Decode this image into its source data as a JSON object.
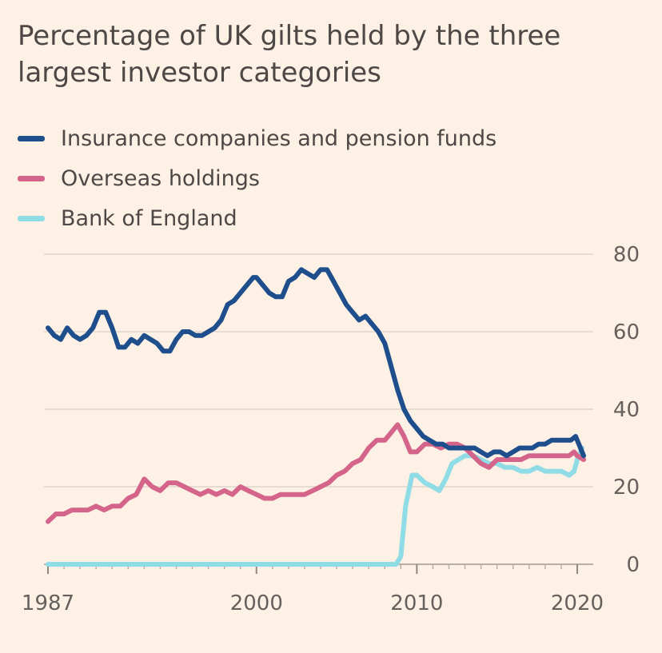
{
  "title": "Percentage of UK gilts held by the three largest investor categories",
  "colors": {
    "background": "#fdf1e6",
    "grid": "#e0d6cc",
    "insurance": "#1f4e8c",
    "overseas": "#d4648a",
    "boe": "#8fdbe6"
  },
  "chart_data": {
    "type": "line",
    "title": "Percentage of UK gilts held by the three largest investor categories",
    "xlabel": "",
    "ylabel": "",
    "xlim": [
      1987,
      2020.5
    ],
    "ylim": [
      0,
      80
    ],
    "y_ticks": [
      0,
      20,
      40,
      60,
      80
    ],
    "x_ticks": [
      1987,
      2000,
      2010,
      2020
    ],
    "grid": true,
    "legend_position": "top-left",
    "y_axis_side": "right",
    "series": [
      {
        "name": "Insurance companies and pension funds",
        "color": "#1f4e8c",
        "x": [
          1987,
          1987.4,
          1987.8,
          1988.2,
          1988.6,
          1989,
          1989.4,
          1989.8,
          1990.2,
          1990.6,
          1991,
          1991.4,
          1991.8,
          1992.2,
          1992.6,
          1993,
          1993.4,
          1993.8,
          1994.2,
          1994.6,
          1995,
          1995.4,
          1995.8,
          1996.2,
          1996.6,
          1997,
          1997.4,
          1997.8,
          1998.2,
          1998.6,
          1999,
          1999.4,
          1999.8,
          2000,
          2000.4,
          2000.8,
          2001.2,
          2001.6,
          2002,
          2002.4,
          2002.8,
          2003.2,
          2003.6,
          2004,
          2004.4,
          2004.8,
          2005.2,
          2005.6,
          2006,
          2006.4,
          2006.8,
          2007.2,
          2007.6,
          2008,
          2008.4,
          2008.8,
          2009.2,
          2009.6,
          2010,
          2010.4,
          2010.8,
          2011.2,
          2011.6,
          2012,
          2012.4,
          2012.8,
          2013.2,
          2013.6,
          2014,
          2014.4,
          2014.8,
          2015.2,
          2015.6,
          2016,
          2016.4,
          2016.8,
          2017.2,
          2017.6,
          2018,
          2018.4,
          2018.8,
          2019.2,
          2019.6,
          2019.9,
          2020.1,
          2020.4
        ],
        "values": [
          61,
          59,
          58,
          61,
          59,
          58,
          59,
          61,
          65,
          65,
          61,
          56,
          56,
          58,
          57,
          59,
          58,
          57,
          55,
          55,
          58,
          60,
          60,
          59,
          59,
          60,
          61,
          63,
          67,
          68,
          70,
          72,
          74,
          74,
          72,
          70,
          69,
          69,
          73,
          74,
          76,
          75,
          74,
          76,
          76,
          73,
          70,
          67,
          65,
          63,
          64,
          62,
          60,
          57,
          51,
          45,
          40,
          37,
          35,
          33,
          32,
          31,
          31,
          30,
          30,
          30,
          30,
          30,
          29,
          28,
          29,
          29,
          28,
          29,
          30,
          30,
          30,
          31,
          31,
          32,
          32,
          32,
          32,
          33,
          31,
          28
        ]
      },
      {
        "name": "Overseas holdings",
        "color": "#d4648a",
        "x": [
          1987,
          1987.5,
          1988,
          1988.5,
          1989,
          1989.5,
          1990,
          1990.5,
          1991,
          1991.5,
          1992,
          1992.5,
          1993,
          1993.5,
          1994,
          1994.5,
          1995,
          1995.5,
          1996,
          1996.5,
          1997,
          1997.5,
          1998,
          1998.5,
          1999,
          1999.5,
          2000,
          2000.5,
          2001,
          2001.5,
          2002,
          2002.5,
          2003,
          2003.5,
          2004,
          2004.5,
          2005,
          2005.5,
          2006,
          2006.5,
          2007,
          2007.5,
          2008,
          2008.4,
          2008.8,
          2009.2,
          2009.6,
          2010,
          2010.5,
          2011,
          2011.5,
          2012,
          2012.5,
          2013,
          2013.5,
          2014,
          2014.5,
          2015,
          2015.5,
          2016,
          2016.5,
          2017,
          2017.5,
          2018,
          2018.5,
          2019,
          2019.5,
          2019.8,
          2020,
          2020.4
        ],
        "values": [
          11,
          13,
          13,
          14,
          14,
          14,
          15,
          14,
          15,
          15,
          17,
          18,
          22,
          20,
          19,
          21,
          21,
          20,
          19,
          18,
          19,
          18,
          19,
          18,
          20,
          19,
          18,
          17,
          17,
          18,
          18,
          18,
          18,
          19,
          20,
          21,
          23,
          24,
          26,
          27,
          30,
          32,
          32,
          34,
          36,
          33,
          29,
          29,
          31,
          31,
          30,
          31,
          31,
          30,
          28,
          26,
          25,
          27,
          27,
          27,
          27,
          28,
          28,
          28,
          28,
          28,
          28,
          29,
          28,
          27
        ]
      },
      {
        "name": "Bank of England",
        "color": "#8fdbe6",
        "x": [
          1987,
          1990,
          1995,
          2000,
          2005,
          2008,
          2008.7,
          2009,
          2009.3,
          2009.7,
          2010,
          2010.5,
          2011,
          2011.4,
          2011.8,
          2012.2,
          2012.6,
          2013,
          2013.5,
          2014,
          2014.5,
          2015,
          2015.5,
          2016,
          2016.5,
          2017,
          2017.5,
          2018,
          2018.5,
          2019,
          2019.5,
          2019.8,
          2020,
          2020.3
        ],
        "values": [
          0,
          0,
          0,
          0,
          0,
          0,
          0,
          2,
          15,
          23,
          23,
          21,
          20,
          19,
          22,
          26,
          27,
          28,
          28,
          27,
          26,
          26,
          25,
          25,
          24,
          24,
          25,
          24,
          24,
          24,
          23,
          24,
          27,
          30
        ]
      }
    ]
  }
}
